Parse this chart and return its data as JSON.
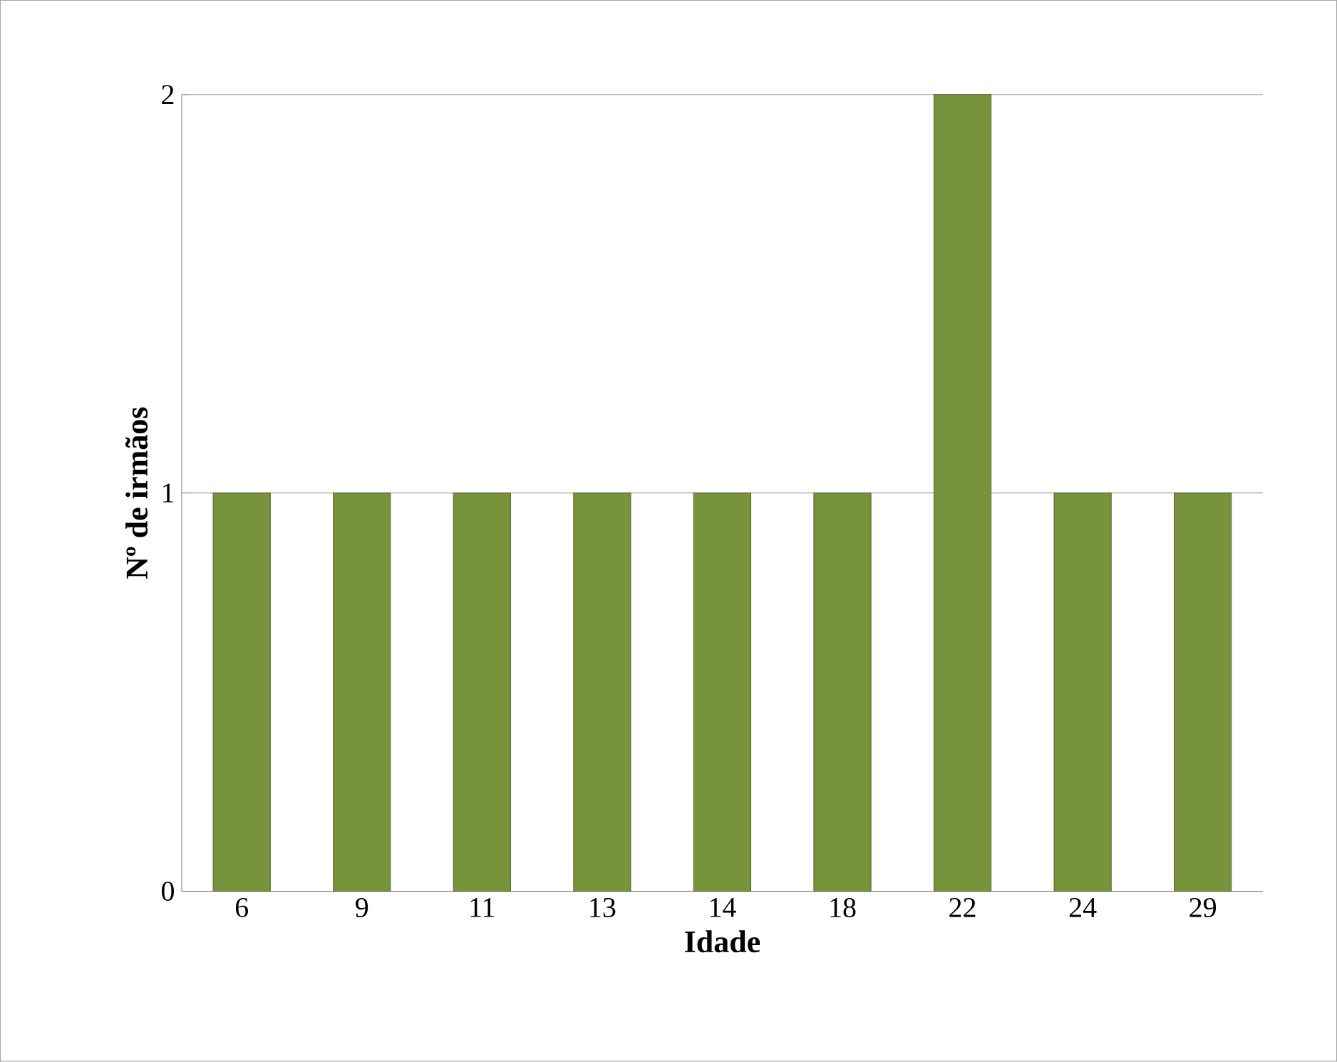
{
  "chart_data": {
    "type": "bar",
    "xlabel": "Idade",
    "ylabel": "Nº de irmãos",
    "categories": [
      "6",
      "9",
      "11",
      "13",
      "14",
      "18",
      "22",
      "24",
      "29"
    ],
    "values": [
      1,
      1,
      1,
      1,
      1,
      1,
      2,
      1,
      1
    ],
    "color": "#77933c",
    "ylim": [
      0,
      2
    ],
    "yticks": [
      0,
      1,
      2
    ],
    "grid": "y"
  }
}
